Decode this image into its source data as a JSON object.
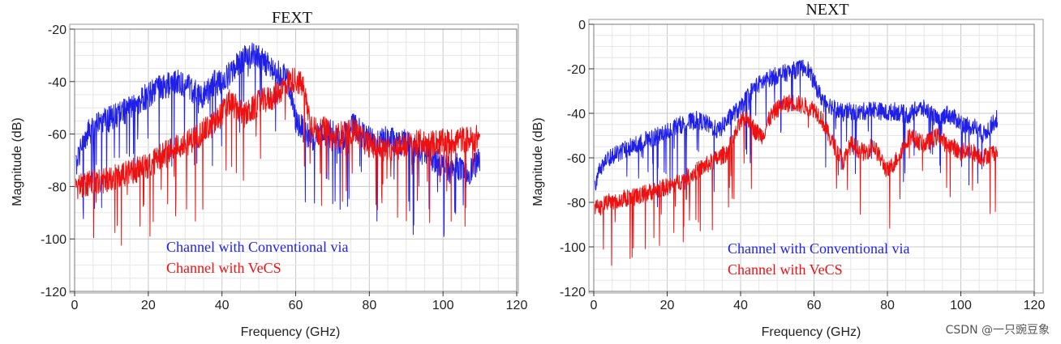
{
  "chart_data": [
    {
      "type": "line",
      "title": "FEXT",
      "xlabel": "Frequency (GHz)",
      "ylabel": "Magnitude (dB)",
      "xlim": [
        0,
        120
      ],
      "ylim": [
        -120,
        -20
      ],
      "xticks": [
        "0",
        "20",
        "40",
        "60",
        "80",
        "100",
        "120"
      ],
      "yticks": [
        "-120",
        "-100",
        "-80",
        "-60",
        "-40",
        "-20"
      ],
      "grid": true,
      "series": [
        {
          "name": "Channel with Conventional via",
          "color": "#1f1fe8",
          "x": [
            0.3,
            2,
            4,
            6,
            8,
            10,
            12,
            14,
            16,
            18,
            20,
            22,
            24,
            26,
            28,
            30,
            32,
            34,
            36,
            38,
            40,
            42,
            44,
            46,
            48,
            50,
            52,
            54,
            56,
            58,
            60,
            62,
            64,
            66,
            68,
            70,
            72,
            74,
            76,
            78,
            80,
            82,
            84,
            86,
            88,
            90,
            92,
            94,
            96,
            98,
            100,
            102,
            104,
            106,
            108,
            110
          ],
          "y": [
            -72,
            -64,
            -59,
            -57,
            -55,
            -54,
            -52,
            -51,
            -49,
            -47,
            -45,
            -43,
            -42,
            -41,
            -40,
            -41,
            -43,
            -46,
            -44,
            -40,
            -41,
            -37,
            -34,
            -31,
            -30,
            -31,
            -33,
            -36,
            -37,
            -40,
            -55,
            -58,
            -62,
            -60,
            -61,
            -58,
            -64,
            -58,
            -57,
            -60,
            -62,
            -64,
            -62,
            -62,
            -64,
            -63,
            -66,
            -67,
            -68,
            -70,
            -72,
            -74,
            -72,
            -76,
            -73,
            -70
          ],
          "noise": 5
        },
        {
          "name": "Channel with VeCS",
          "color": "#ee1111",
          "x": [
            0.3,
            2,
            4,
            6,
            8,
            10,
            12,
            14,
            16,
            18,
            20,
            22,
            24,
            26,
            28,
            30,
            32,
            34,
            36,
            38,
            40,
            42,
            44,
            46,
            48,
            50,
            52,
            54,
            56,
            58,
            60,
            62,
            64,
            66,
            68,
            70,
            72,
            74,
            76,
            78,
            80,
            82,
            84,
            86,
            88,
            90,
            92,
            94,
            96,
            98,
            100,
            102,
            104,
            106,
            108,
            110
          ],
          "y": [
            -80,
            -80,
            -79,
            -78,
            -78,
            -77,
            -76,
            -75,
            -74,
            -73,
            -72,
            -70,
            -68,
            -66,
            -65,
            -64,
            -62,
            -60,
            -58,
            -56,
            -52,
            -48,
            -50,
            -53,
            -51,
            -48,
            -47,
            -46,
            -43,
            -40,
            -39,
            -42,
            -55,
            -60,
            -58,
            -62,
            -60,
            -60,
            -58,
            -62,
            -64,
            -65,
            -66,
            -66,
            -65,
            -64,
            -64,
            -63,
            -64,
            -63,
            -63,
            -63,
            -62,
            -62,
            -62,
            -61
          ],
          "noise": 5
        }
      ],
      "legend": "bottom-left"
    },
    {
      "type": "line",
      "title": "NEXT",
      "xlabel": "Frequency (GHz)",
      "ylabel": "Magnitude (dB)",
      "xlim": [
        0,
        120
      ],
      "ylim": [
        -120,
        0
      ],
      "xticks": [
        "0",
        "20",
        "40",
        "60",
        "80",
        "100",
        "120"
      ],
      "yticks": [
        "-120",
        "-100",
        "-80",
        "-60",
        "-40",
        "-20",
        "0"
      ],
      "grid": true,
      "series": [
        {
          "name": "Channel with Conventional via",
          "color": "#1f1fe8",
          "x": [
            0.3,
            2,
            4,
            6,
            8,
            10,
            12,
            14,
            16,
            18,
            20,
            22,
            24,
            26,
            28,
            30,
            32,
            34,
            36,
            38,
            40,
            42,
            44,
            46,
            48,
            50,
            52,
            54,
            56,
            58,
            60,
            62,
            64,
            66,
            68,
            70,
            72,
            74,
            76,
            78,
            80,
            82,
            84,
            86,
            88,
            90,
            92,
            94,
            96,
            98,
            100,
            102,
            104,
            106,
            108,
            110
          ],
          "y": [
            -72,
            -64,
            -60,
            -58,
            -57,
            -55,
            -54,
            -52,
            -51,
            -50,
            -48,
            -46,
            -45,
            -44,
            -43,
            -44,
            -46,
            -48,
            -44,
            -40,
            -38,
            -32,
            -28,
            -26,
            -24,
            -23,
            -22,
            -21,
            -20,
            -19,
            -26,
            -33,
            -36,
            -38,
            -40,
            -39,
            -40,
            -39,
            -38,
            -39,
            -40,
            -39,
            -40,
            -41,
            -38,
            -38,
            -40,
            -44,
            -40,
            -42,
            -44,
            -46,
            -46,
            -50,
            -46,
            -42
          ],
          "noise": 4
        },
        {
          "name": "Channel with VeCS",
          "color": "#ee1111",
          "x": [
            0.3,
            2,
            4,
            6,
            8,
            10,
            12,
            14,
            16,
            18,
            20,
            22,
            24,
            26,
            28,
            30,
            32,
            34,
            36,
            38,
            40,
            42,
            44,
            46,
            48,
            50,
            52,
            54,
            56,
            58,
            60,
            62,
            64,
            66,
            68,
            70,
            72,
            74,
            76,
            78,
            80,
            82,
            84,
            86,
            88,
            90,
            92,
            94,
            96,
            98,
            100,
            102,
            104,
            106,
            108,
            110
          ],
          "y": [
            -82,
            -82,
            -80,
            -79,
            -78,
            -78,
            -77,
            -76,
            -75,
            -74,
            -73,
            -72,
            -70,
            -68,
            -66,
            -64,
            -62,
            -60,
            -58,
            -52,
            -44,
            -42,
            -48,
            -50,
            -42,
            -38,
            -36,
            -35,
            -36,
            -37,
            -38,
            -42,
            -50,
            -56,
            -62,
            -54,
            -56,
            -58,
            -54,
            -60,
            -66,
            -62,
            -56,
            -50,
            -52,
            -54,
            -52,
            -50,
            -54,
            -55,
            -58,
            -56,
            -58,
            -60,
            -58,
            -57
          ],
          "noise": 4
        }
      ],
      "legend": "bottom-center"
    }
  ],
  "watermark_text": "CSDN @一只豌豆象"
}
